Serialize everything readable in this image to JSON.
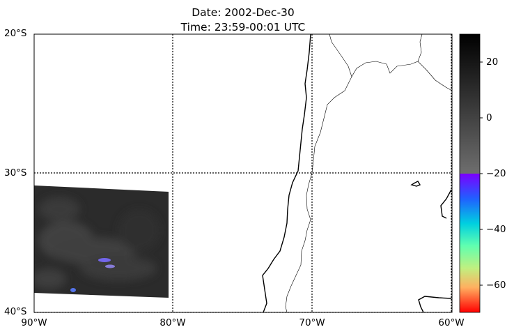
{
  "title": {
    "line1": "Date: 2002-Dec-30",
    "line2": "Time: 23:59-00:01 UTC"
  },
  "map": {
    "extent_lon": [
      -90,
      -60
    ],
    "extent_lat": [
      -40,
      -20
    ],
    "gridlines": "dotted",
    "lat_ticks": [
      {
        "value": -20,
        "label": "20°S"
      },
      {
        "value": -30,
        "label": "30°S"
      },
      {
        "value": -40,
        "label": "40°S"
      }
    ],
    "lon_ticks": [
      {
        "value": -90,
        "label": "90°W"
      },
      {
        "value": -80,
        "label": "80°W"
      },
      {
        "value": -70,
        "label": "70°W"
      },
      {
        "value": -60,
        "label": "60°W"
      }
    ]
  },
  "colorbar": {
    "range": [
      -70,
      30
    ],
    "ticks": [
      {
        "value": 20,
        "label": "20"
      },
      {
        "value": 0,
        "label": "0"
      },
      {
        "value": -20,
        "label": "−20"
      },
      {
        "value": -40,
        "label": "−40"
      },
      {
        "value": -60,
        "label": "−60"
      }
    ],
    "gray_segment": [
      -20,
      30
    ],
    "color_segment": [
      -70,
      -20
    ]
  },
  "colors": {
    "imagery_gray": "#2e2e2e",
    "coastline": "#000000",
    "border": "#000000"
  }
}
